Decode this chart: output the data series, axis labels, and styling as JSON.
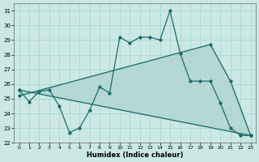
{
  "xlabel": "Humidex (Indice chaleur)",
  "bg_color": "#cce8e4",
  "grid_color": "#a8d8d0",
  "line_color": "#1a6b6b",
  "fill_color": "#1a6b6b",
  "xlim": [
    -0.5,
    23.5
  ],
  "ylim": [
    22,
    31.5
  ],
  "yticks": [
    22,
    23,
    24,
    25,
    26,
    27,
    28,
    29,
    30,
    31
  ],
  "xticks": [
    0,
    1,
    2,
    3,
    4,
    5,
    6,
    7,
    8,
    9,
    10,
    11,
    12,
    13,
    14,
    15,
    16,
    17,
    18,
    19,
    20,
    21,
    22,
    23
  ],
  "line1_x": [
    0,
    1,
    2,
    3,
    4,
    5,
    6,
    7,
    8,
    9,
    10,
    11,
    12,
    13,
    14,
    15,
    16,
    17,
    18,
    19,
    20,
    21,
    22,
    23
  ],
  "line1_y": [
    25.6,
    24.8,
    25.5,
    25.6,
    24.5,
    22.7,
    23.0,
    24.2,
    25.8,
    25.4,
    29.2,
    28.8,
    29.2,
    29.2,
    29.0,
    31.0,
    28.1,
    26.2,
    26.2,
    26.2,
    24.7,
    23.0,
    22.5,
    22.5
  ],
  "line2_x": [
    0,
    23
  ],
  "line2_y": [
    25.6,
    22.5
  ],
  "line3_x": [
    0,
    19,
    21,
    23
  ],
  "line3_y": [
    25.2,
    28.7,
    26.2,
    22.5
  ]
}
